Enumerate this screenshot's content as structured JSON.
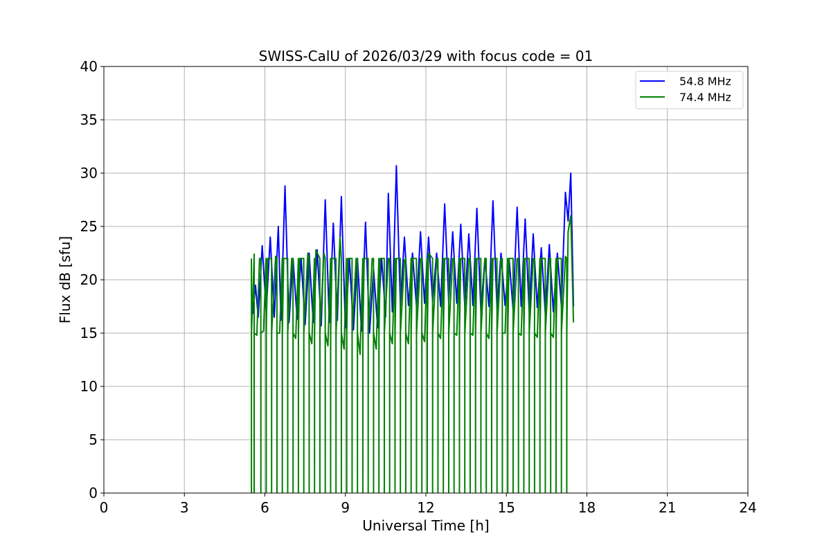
{
  "chart_data": {
    "type": "line",
    "title": "SWISS-CalU of 2026/03/29 with focus code = 01",
    "xlabel": "Universal Time [h]",
    "ylabel": "Flux dB [sfu]",
    "xlim": [
      0,
      24
    ],
    "ylim": [
      0,
      40
    ],
    "xticks": [
      0,
      3,
      6,
      9,
      12,
      15,
      18,
      21,
      24
    ],
    "yticks": [
      0,
      5,
      10,
      15,
      20,
      25,
      30,
      35,
      40
    ],
    "xtick_labels": [
      "0",
      "3",
      "6",
      "9",
      "12",
      "15",
      "18",
      "21",
      "24"
    ],
    "ytick_labels": [
      "0",
      "5",
      "10",
      "15",
      "20",
      "25",
      "30",
      "35",
      "40"
    ],
    "grid": true,
    "legend_position": "top-right",
    "series": [
      {
        "name": "54.8 MHz",
        "color": "#0000ff",
        "x": [
          5.55,
          5.65,
          5.75,
          5.9,
          6.05,
          6.2,
          6.35,
          6.5,
          6.6,
          6.75,
          6.9,
          7.05,
          7.2,
          7.35,
          7.5,
          7.65,
          7.8,
          7.95,
          8.1,
          8.25,
          8.4,
          8.55,
          8.7,
          8.85,
          9.0,
          9.15,
          9.3,
          9.45,
          9.6,
          9.75,
          9.9,
          10.05,
          10.2,
          10.35,
          10.5,
          10.6,
          10.75,
          10.9,
          11.05,
          11.2,
          11.35,
          11.5,
          11.65,
          11.8,
          11.95,
          12.1,
          12.25,
          12.4,
          12.55,
          12.7,
          12.85,
          13.0,
          13.15,
          13.3,
          13.45,
          13.6,
          13.75,
          13.9,
          14.05,
          14.2,
          14.35,
          14.5,
          14.65,
          14.8,
          14.95,
          15.1,
          15.25,
          15.4,
          15.55,
          15.7,
          15.85,
          16.0,
          16.15,
          16.3,
          16.45,
          16.6,
          16.75,
          16.9,
          17.05,
          17.2,
          17.3,
          17.4,
          17.5
        ],
        "y": [
          16.8,
          19.5,
          16.5,
          23.2,
          17.0,
          24.0,
          16.5,
          25.0,
          16.2,
          28.8,
          16.0,
          22.0,
          16.3,
          22.0,
          15.8,
          22.5,
          16.0,
          22.8,
          15.7,
          27.5,
          16.0,
          25.3,
          16.2,
          27.8,
          15.5,
          22.0,
          15.3,
          22.0,
          15.2,
          25.4,
          15.0,
          21.0,
          15.5,
          22.0,
          16.5,
          28.1,
          17.0,
          30.7,
          17.5,
          24.0,
          17.6,
          22.5,
          17.5,
          24.5,
          17.8,
          24.0,
          18.0,
          22.5,
          17.5,
          27.1,
          18.0,
          24.5,
          17.8,
          25.2,
          17.5,
          24.3,
          17.6,
          26.7,
          17.0,
          22.0,
          17.5,
          27.4,
          17.3,
          22.5,
          17.6,
          22.0,
          17.2,
          26.8,
          17.5,
          25.7,
          17.0,
          24.3,
          17.4,
          23.0,
          16.8,
          23.3,
          17.0,
          22.5,
          17.5,
          28.2,
          25.5,
          30.0,
          17.5
        ]
      },
      {
        "name": "74.4 MHz",
        "color": "#008000",
        "x": [
          5.5,
          5.6,
          5.7,
          5.8,
          5.95,
          6.1,
          6.25,
          6.4,
          6.55,
          6.7,
          6.85,
          7.0,
          7.15,
          7.3,
          7.45,
          7.6,
          7.75,
          7.9,
          8.05,
          8.2,
          8.35,
          8.5,
          8.65,
          8.8,
          8.95,
          9.1,
          9.25,
          9.4,
          9.55,
          9.7,
          9.85,
          10.0,
          10.15,
          10.3,
          10.45,
          10.6,
          10.75,
          10.9,
          11.05,
          11.2,
          11.35,
          11.5,
          11.65,
          11.8,
          11.95,
          12.1,
          12.25,
          12.4,
          12.55,
          12.7,
          12.85,
          13.0,
          13.15,
          13.3,
          13.45,
          13.6,
          13.75,
          13.9,
          14.05,
          14.2,
          14.35,
          14.5,
          14.65,
          14.8,
          14.95,
          15.1,
          15.25,
          15.4,
          15.55,
          15.7,
          15.85,
          16.0,
          16.15,
          16.3,
          16.45,
          16.6,
          16.75,
          16.9,
          17.05,
          17.2,
          17.3,
          17.4,
          17.5
        ],
        "y": [
          15.0,
          22.4,
          14.8,
          22.0,
          15.2,
          22.0,
          15.0,
          22.2,
          15.0,
          22.0,
          14.8,
          22.0,
          14.5,
          22.0,
          14.2,
          22.5,
          14.0,
          22.8,
          14.0,
          22.5,
          13.8,
          22.0,
          13.7,
          24.0,
          13.5,
          22.0,
          13.3,
          22.0,
          13.0,
          22.0,
          13.0,
          22.0,
          13.5,
          22.0,
          13.7,
          22.0,
          14.0,
          22.0,
          14.0,
          21.8,
          14.0,
          22.0,
          14.0,
          22.0,
          14.2,
          22.5,
          14.3,
          22.0,
          14.5,
          22.0,
          15.0,
          22.0,
          14.8,
          22.0,
          14.5,
          22.0,
          14.8,
          22.0,
          15.0,
          22.0,
          14.5,
          22.0,
          14.6,
          22.0,
          15.0,
          22.0,
          14.5,
          22.0,
          14.8,
          22.0,
          14.5,
          22.0,
          14.6,
          22.0,
          14.5,
          22.0,
          14.6,
          22.0,
          14.5,
          22.2,
          24.5,
          26.0,
          16.0
        ],
        "dropouts_to_zero_at_x": [
          5.5,
          5.6,
          5.85,
          6.05,
          6.25,
          6.45,
          6.65,
          6.85,
          7.05,
          7.25,
          7.45,
          7.65,
          7.85,
          8.05,
          8.25,
          8.45,
          8.65,
          8.85,
          9.05,
          9.25,
          9.45,
          9.65,
          9.85,
          10.05,
          10.25,
          10.45,
          10.65,
          10.85,
          11.05,
          11.25,
          11.45,
          11.65,
          11.85,
          12.05,
          12.25,
          12.45,
          12.65,
          12.85,
          13.05,
          13.25,
          13.45,
          13.65,
          13.85,
          14.05,
          14.25,
          14.45,
          14.65,
          14.85,
          15.05,
          15.25,
          15.45,
          15.65,
          15.85,
          16.05,
          16.25,
          16.45,
          16.65,
          16.85,
          17.05,
          17.25
        ]
      }
    ]
  }
}
